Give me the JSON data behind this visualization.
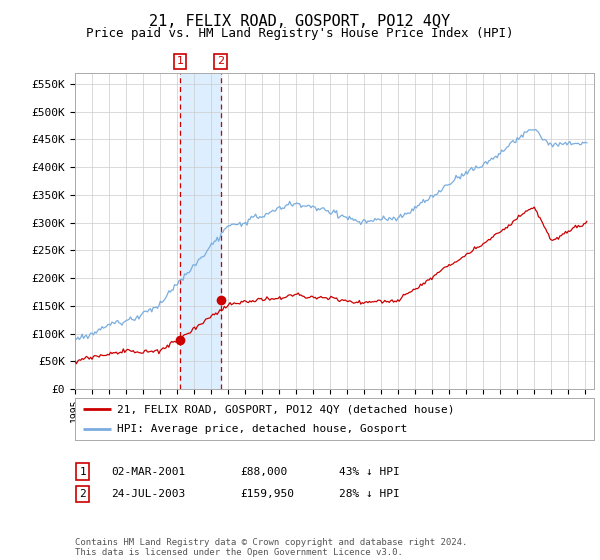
{
  "title": "21, FELIX ROAD, GOSPORT, PO12 4QY",
  "subtitle": "Price paid vs. HM Land Registry's House Price Index (HPI)",
  "title_fontsize": 11,
  "subtitle_fontsize": 9,
  "ylabel_ticks": [
    "£0",
    "£50K",
    "£100K",
    "£150K",
    "£200K",
    "£250K",
    "£300K",
    "£350K",
    "£400K",
    "£450K",
    "£500K",
    "£550K"
  ],
  "ytick_values": [
    0,
    50000,
    100000,
    150000,
    200000,
    250000,
    300000,
    350000,
    400000,
    450000,
    500000,
    550000
  ],
  "ylim": [
    0,
    570000
  ],
  "xlim_start": 1995.0,
  "xlim_end": 2025.5,
  "transaction1": {
    "date": "02-MAR-2001",
    "price": 88000,
    "year": 2001.17,
    "label": "1",
    "pct": "43% ↓ HPI"
  },
  "transaction2": {
    "date": "24-JUL-2003",
    "price": 159950,
    "year": 2003.56,
    "label": "2",
    "pct": "28% ↓ HPI"
  },
  "legend_line1": "21, FELIX ROAD, GOSPORT, PO12 4QY (detached house)",
  "legend_line2": "HPI: Average price, detached house, Gosport",
  "footer": "Contains HM Land Registry data © Crown copyright and database right 2024.\nThis data is licensed under the Open Government Licence v3.0.",
  "red_color": "#cc0000",
  "blue_color": "#7aadde",
  "shade_color": "#ddeeff",
  "background_color": "#ffffff",
  "grid_color": "#cccccc"
}
